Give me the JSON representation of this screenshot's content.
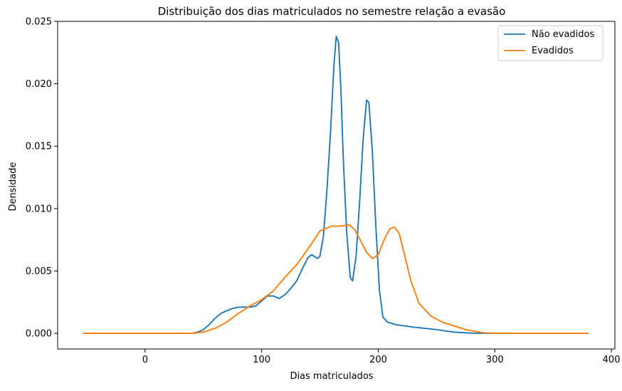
{
  "chart_data": {
    "type": "line",
    "title": "Distribuição dos dias matriculados no semestre relação a evasão",
    "xlabel": "Dias matriculados",
    "ylabel": "Densidade",
    "xlim": [
      -75,
      403
    ],
    "ylim": [
      -0.00125,
      0.025
    ],
    "x_ticks": [
      0,
      100,
      200,
      300,
      400
    ],
    "x_tick_labels": [
      "0",
      "100",
      "200",
      "300",
      "400"
    ],
    "y_ticks": [
      0,
      0.005,
      0.01,
      0.015,
      0.02,
      0.025
    ],
    "y_tick_labels": [
      "0.000",
      "0.005",
      "0.010",
      "0.015",
      "0.020",
      "0.025"
    ],
    "grid": false,
    "legend_position": "top-right",
    "series": [
      {
        "name": "Não evadidos",
        "color": "#1f77b4",
        "points": [
          [
            -52,
            0
          ],
          [
            0,
            0
          ],
          [
            40,
            0
          ],
          [
            45,
            0.0001
          ],
          [
            50,
            0.0003
          ],
          [
            55,
            0.0007
          ],
          [
            60,
            0.0012
          ],
          [
            65,
            0.0016
          ],
          [
            70,
            0.0018
          ],
          [
            75,
            0.002
          ],
          [
            80,
            0.0021
          ],
          [
            85,
            0.0021
          ],
          [
            90,
            0.0021
          ],
          [
            95,
            0.0022
          ],
          [
            100,
            0.0026
          ],
          [
            105,
            0.003
          ],
          [
            110,
            0.003
          ],
          [
            115,
            0.0028
          ],
          [
            120,
            0.0031
          ],
          [
            125,
            0.0036
          ],
          [
            130,
            0.0042
          ],
          [
            135,
            0.0052
          ],
          [
            140,
            0.0061
          ],
          [
            143,
            0.0063
          ],
          [
            148,
            0.006
          ],
          [
            150,
            0.0062
          ],
          [
            153,
            0.0078
          ],
          [
            156,
            0.0115
          ],
          [
            159,
            0.016
          ],
          [
            162,
            0.0215
          ],
          [
            164,
            0.0238
          ],
          [
            166,
            0.0233
          ],
          [
            168,
            0.0195
          ],
          [
            170,
            0.014
          ],
          [
            173,
            0.008
          ],
          [
            176,
            0.0045
          ],
          [
            178,
            0.0042
          ],
          [
            181,
            0.0062
          ],
          [
            184,
            0.0105
          ],
          [
            187,
            0.0155
          ],
          [
            190,
            0.0187
          ],
          [
            192,
            0.0185
          ],
          [
            195,
            0.0145
          ],
          [
            198,
            0.0085
          ],
          [
            201,
            0.0035
          ],
          [
            204,
            0.0013
          ],
          [
            208,
            0.0009
          ],
          [
            215,
            0.0007
          ],
          [
            230,
            0.0005
          ],
          [
            250,
            0.0003
          ],
          [
            265,
            0.0001
          ],
          [
            280,
            2e-05
          ],
          [
            300,
            0
          ],
          [
            362,
            0
          ]
        ]
      },
      {
        "name": "Evadidos",
        "color": "#ff7f0e",
        "points": [
          [
            -53,
            0
          ],
          [
            0,
            0
          ],
          [
            40,
            0
          ],
          [
            50,
            0.0001
          ],
          [
            60,
            0.0004
          ],
          [
            70,
            0.0009
          ],
          [
            80,
            0.0016
          ],
          [
            90,
            0.0022
          ],
          [
            100,
            0.0027
          ],
          [
            110,
            0.0034
          ],
          [
            120,
            0.0045
          ],
          [
            130,
            0.0055
          ],
          [
            140,
            0.0068
          ],
          [
            150,
            0.0082
          ],
          [
            160,
            0.0086
          ],
          [
            168,
            0.0086
          ],
          [
            175,
            0.0087
          ],
          [
            180,
            0.0083
          ],
          [
            185,
            0.0074
          ],
          [
            190,
            0.0065
          ],
          [
            195,
            0.006
          ],
          [
            200,
            0.0063
          ],
          [
            205,
            0.0075
          ],
          [
            210,
            0.0084
          ],
          [
            214,
            0.0085
          ],
          [
            218,
            0.008
          ],
          [
            222,
            0.0065
          ],
          [
            228,
            0.0042
          ],
          [
            235,
            0.0024
          ],
          [
            245,
            0.0014
          ],
          [
            255,
            0.0009
          ],
          [
            265,
            0.0006
          ],
          [
            275,
            0.0003
          ],
          [
            290,
            5e-05
          ],
          [
            300,
            0
          ],
          [
            380,
            0
          ]
        ]
      }
    ]
  }
}
